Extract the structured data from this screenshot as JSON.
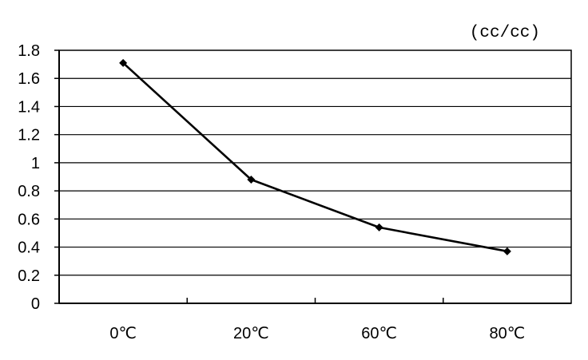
{
  "chart_data": {
    "type": "line",
    "title": "",
    "xlabel": "",
    "ylabel": "",
    "unit_label": "(cc/cc)",
    "categories": [
      "0℃",
      "20℃",
      "60℃",
      "80℃"
    ],
    "series": [
      {
        "values": [
          1.71,
          0.88,
          0.54,
          0.37
        ]
      }
    ],
    "ylim": [
      0,
      1.8
    ],
    "yticks": [
      0,
      0.2,
      0.4,
      0.6,
      0.8,
      1,
      1.2,
      1.4,
      1.6,
      1.8
    ],
    "ytick_labels": [
      "0",
      "0.2",
      "0.4",
      "0.6",
      "0.8",
      "1",
      "1.2",
      "1.4",
      "1.6",
      "1.8"
    ],
    "grid": true,
    "legend": "none",
    "line_color": "#000000",
    "marker": "diamond"
  }
}
